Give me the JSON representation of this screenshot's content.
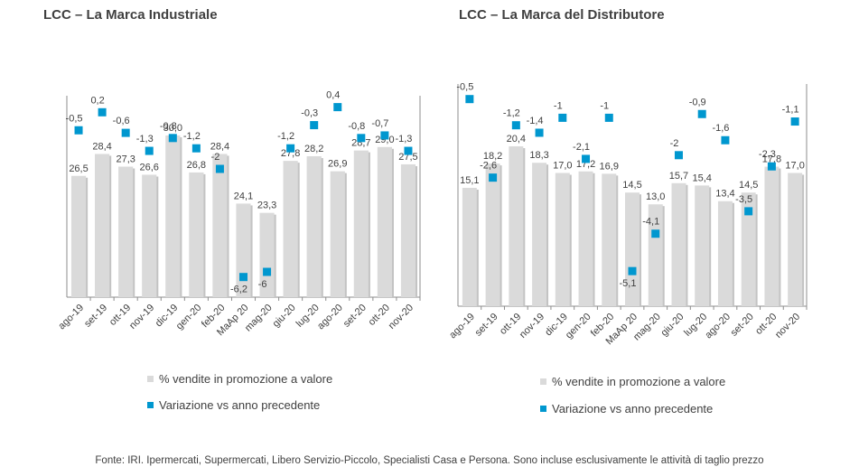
{
  "legend": {
    "bar_label": "% vendite in promozione a valore",
    "point_label": "Variazione vs anno precedente"
  },
  "source_note": "Fonte: IRI. Ipermercati, Supermercati, Libero Servizio-Piccolo, Specialisti Casa e Persona. Sono incluse esclusivamente le attività di taglio prezzo",
  "colors": {
    "bar": "#dadada",
    "bar_shadow": "#c3c3c3",
    "point": "#0097cf",
    "axis": "#8c8c8c",
    "text": "#404040"
  },
  "chart_data": [
    {
      "type": "bar",
      "title": "LCC – La Marca Industriale",
      "categories": [
        "ago-19",
        "set-19",
        "ott-19",
        "nov-19",
        "dic-19",
        "gen-20",
        "feb-20",
        "MaAp 20",
        "mag-20",
        "giu-20",
        "lug-20",
        "ago-20",
        "set-20",
        "ott-20",
        "nov-20"
      ],
      "series": [
        {
          "name": "% vendite in promozione a valore",
          "type": "bar",
          "values": [
            26.5,
            28.4,
            27.3,
            26.6,
            30.0,
            26.8,
            28.4,
            24.1,
            23.3,
            27.8,
            28.2,
            26.9,
            28.7,
            29.0,
            27.5
          ],
          "labels": [
            "26,5",
            "28,4",
            "27,3",
            "26,6",
            "30,0",
            "26,8",
            "28,4",
            "24,1",
            "23,3",
            "27,8",
            "28,2",
            "26,9",
            "28,7",
            "29,0",
            "27,5"
          ]
        },
        {
          "name": "Variazione vs anno precedente",
          "type": "scatter",
          "values": [
            -0.5,
            0.2,
            -0.6,
            -1.3,
            -0.8,
            -1.2,
            -2.0,
            -6.2,
            -6.0,
            -1.2,
            -0.3,
            0.4,
            -0.8,
            -0.7,
            -1.3
          ],
          "labels": [
            "-0,5",
            "0,2",
            "-0,6",
            "-1,3",
            "-0,8",
            "-1,2",
            "-2",
            "-6,2",
            "-6",
            "-1,2",
            "-0,3",
            "0,4",
            "-0,8",
            "-0,7",
            "-1,3"
          ]
        }
      ]
    },
    {
      "type": "bar",
      "title": "LCC – La Marca del Distributore",
      "categories": [
        "ago-19",
        "set-19",
        "ott-19",
        "nov-19",
        "dic-19",
        "gen-20",
        "feb-20",
        "MaAp 20",
        "mag-20",
        "giu-20",
        "lug-20",
        "ago-20",
        "set-20",
        "ott-20",
        "nov-20"
      ],
      "series": [
        {
          "name": "% vendite in promozione a valore",
          "type": "bar",
          "values": [
            15.1,
            18.2,
            20.4,
            18.3,
            17.0,
            17.2,
            16.9,
            14.5,
            13.0,
            15.7,
            15.4,
            13.4,
            14.5,
            17.8,
            17.0
          ],
          "labels": [
            "15,1",
            "18,2",
            "20,4",
            "18,3",
            "17,0",
            "17,2",
            "16,9",
            "14,5",
            "13,0",
            "15,7",
            "15,4",
            "13,4",
            "14,5",
            "17,8",
            "17,0"
          ]
        },
        {
          "name": "Variazione vs anno precedente",
          "type": "scatter",
          "values": [
            -0.5,
            -2.6,
            -1.2,
            -1.4,
            -1.0,
            -2.1,
            -1.0,
            -5.1,
            -4.1,
            -2.0,
            -0.9,
            -1.6,
            -3.5,
            -2.3,
            -1.1
          ],
          "labels": [
            "-0,5",
            "-2,6",
            "-1,2",
            "-1,4",
            "-1",
            "-2,1",
            "-1",
            "-5,1",
            "-4,1",
            "-2",
            "-0,9",
            "-1,6",
            "-3,5",
            "-2,3",
            "-1,1"
          ]
        }
      ]
    }
  ]
}
